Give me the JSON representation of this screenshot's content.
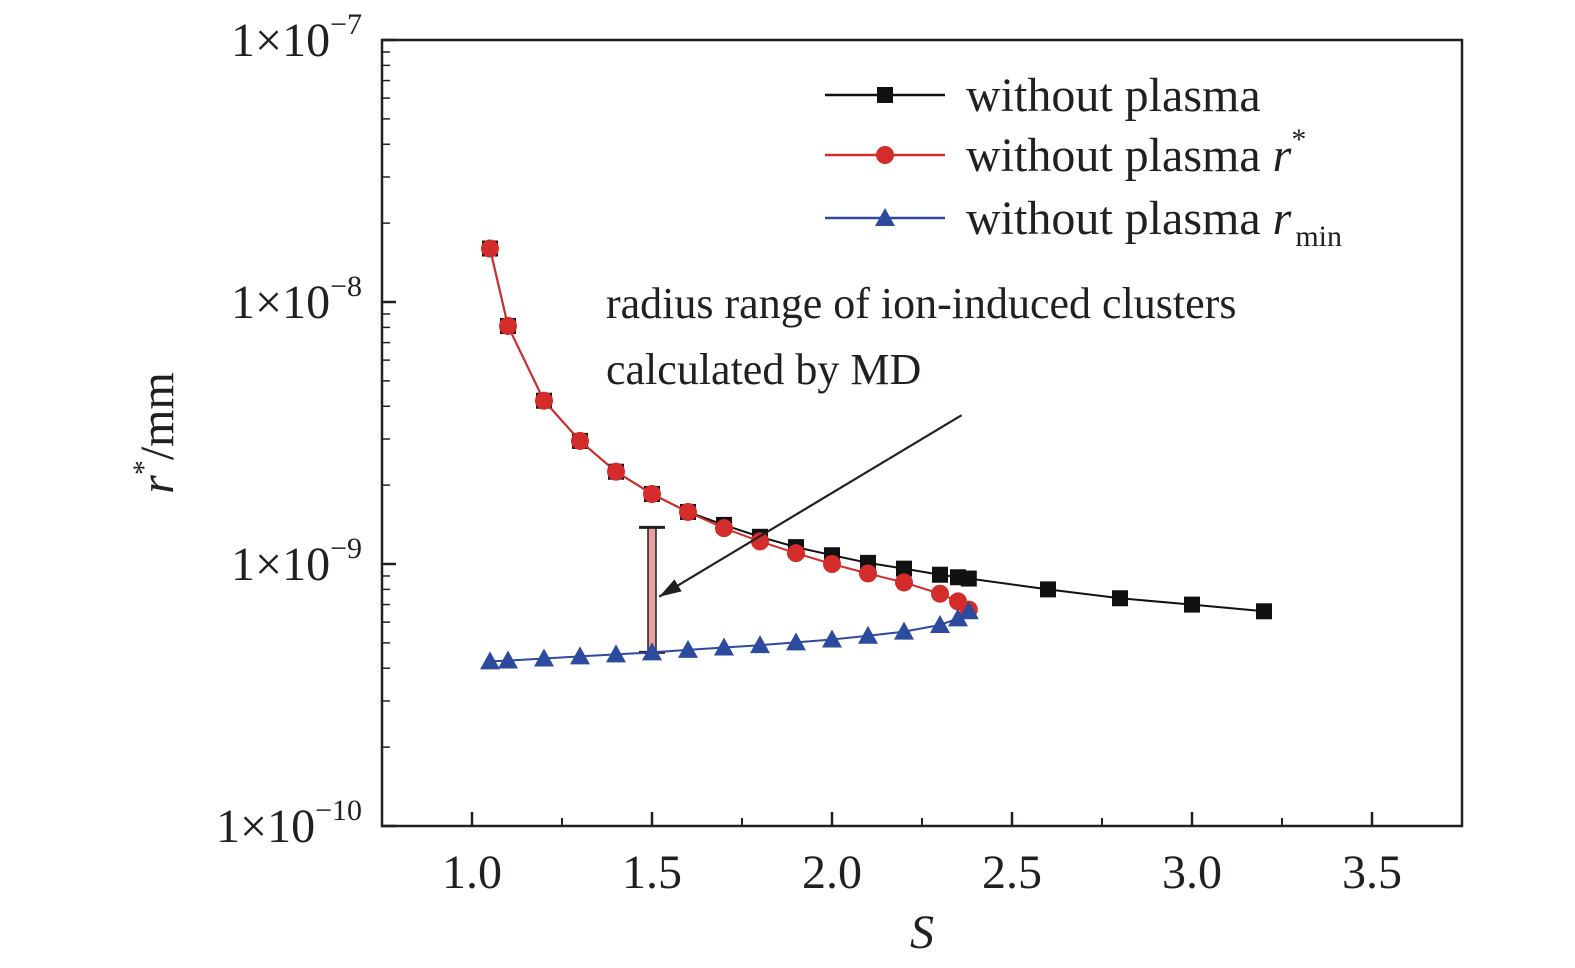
{
  "colors": {
    "axis": "#231f20",
    "without_plasma": "#111111",
    "r_star": "#d42b2b",
    "r_min": "#2c4a9e",
    "error_bar_fill": "#e8a0a0"
  },
  "chart_data": {
    "type": "line",
    "title": "",
    "xlabel": "S",
    "ylabel": {
      "main": "r",
      "sup": "*",
      "unit": "/mm"
    },
    "x_scale": "linear",
    "y_scale": "log",
    "xlim": [
      0.75,
      3.75
    ],
    "ylim": [
      1e-10,
      1e-07
    ],
    "x_ticks": [
      {
        "value": 1.0,
        "label": "1.0"
      },
      {
        "value": 1.5,
        "label": "1.5"
      },
      {
        "value": 2.0,
        "label": "2.0"
      },
      {
        "value": 2.5,
        "label": "2.5"
      },
      {
        "value": 3.0,
        "label": "3.0"
      },
      {
        "value": 3.5,
        "label": "3.5"
      }
    ],
    "y_ticks": [
      {
        "value": 1e-10,
        "base": "1×10",
        "exp": "−10"
      },
      {
        "value": 1e-09,
        "base": "1×10",
        "exp": "−9"
      },
      {
        "value": 1e-08,
        "base": "1×10",
        "exp": "−8"
      },
      {
        "value": 1e-07,
        "base": "1×10",
        "exp": "−7"
      }
    ],
    "grid": false,
    "legend_position": "top-right",
    "series": [
      {
        "name": "without plasma",
        "name_parts": {
          "text": "without plasma",
          "sup": "",
          "sub": "",
          "ital": ""
        },
        "marker": "square",
        "color": "#111111",
        "x": [
          1.05,
          1.1,
          1.2,
          1.3,
          1.4,
          1.5,
          1.6,
          1.7,
          1.8,
          1.9,
          2.0,
          2.1,
          2.2,
          2.3,
          2.35,
          2.38,
          2.6,
          2.8,
          3.0,
          3.2
        ],
        "y": [
          1.6e-08,
          8.1e-09,
          4.2e-09,
          2.95e-09,
          2.25e-09,
          1.85e-09,
          1.58e-09,
          1.41e-09,
          1.27e-09,
          1.16e-09,
          1.08e-09,
          1.01e-09,
          9.6e-10,
          9.1e-10,
          8.9e-10,
          8.8e-10,
          8e-10,
          7.4e-10,
          7e-10,
          6.6e-10
        ]
      },
      {
        "name": "without plasma r*",
        "name_parts": {
          "text": "without plasma ",
          "ital": "r",
          "sup": "*",
          "sub": ""
        },
        "marker": "circle",
        "color": "#d42b2b",
        "x": [
          1.05,
          1.1,
          1.2,
          1.3,
          1.4,
          1.5,
          1.6,
          1.7,
          1.8,
          1.9,
          2.0,
          2.1,
          2.2,
          2.3,
          2.35,
          2.38
        ],
        "y": [
          1.6e-08,
          8.1e-09,
          4.2e-09,
          2.95e-09,
          2.25e-09,
          1.85e-09,
          1.58e-09,
          1.37e-09,
          1.22e-09,
          1.1e-09,
          1e-09,
          9.2e-10,
          8.5e-10,
          7.7e-10,
          7.2e-10,
          6.7e-10
        ]
      },
      {
        "name": "without plasma rmin",
        "name_parts": {
          "text": "without plasma ",
          "ital": "r",
          "sup": "",
          "sub": "min"
        },
        "marker": "triangle",
        "color": "#2c4a9e",
        "x": [
          1.05,
          1.1,
          1.2,
          1.3,
          1.4,
          1.5,
          1.6,
          1.7,
          1.8,
          1.9,
          2.0,
          2.1,
          2.2,
          2.3,
          2.35,
          2.38
        ],
        "y": [
          4.25e-10,
          4.28e-10,
          4.36e-10,
          4.44e-10,
          4.52e-10,
          4.6e-10,
          4.7e-10,
          4.8e-10,
          4.9e-10,
          5.02e-10,
          5.15e-10,
          5.32e-10,
          5.52e-10,
          5.85e-10,
          6.2e-10,
          6.6e-10
        ]
      }
    ],
    "error_bar": {
      "x": 1.5,
      "y_low": 4.6e-10,
      "y_high": 1.38e-09
    },
    "annotation": {
      "lines": [
        "radius range of ion-induced clusters",
        "calculated by MD"
      ],
      "arrow_from": {
        "x": 2.36,
        "y": 3.7e-09
      },
      "arrow_to": {
        "x": 1.52,
        "y": 7.5e-10
      }
    }
  }
}
